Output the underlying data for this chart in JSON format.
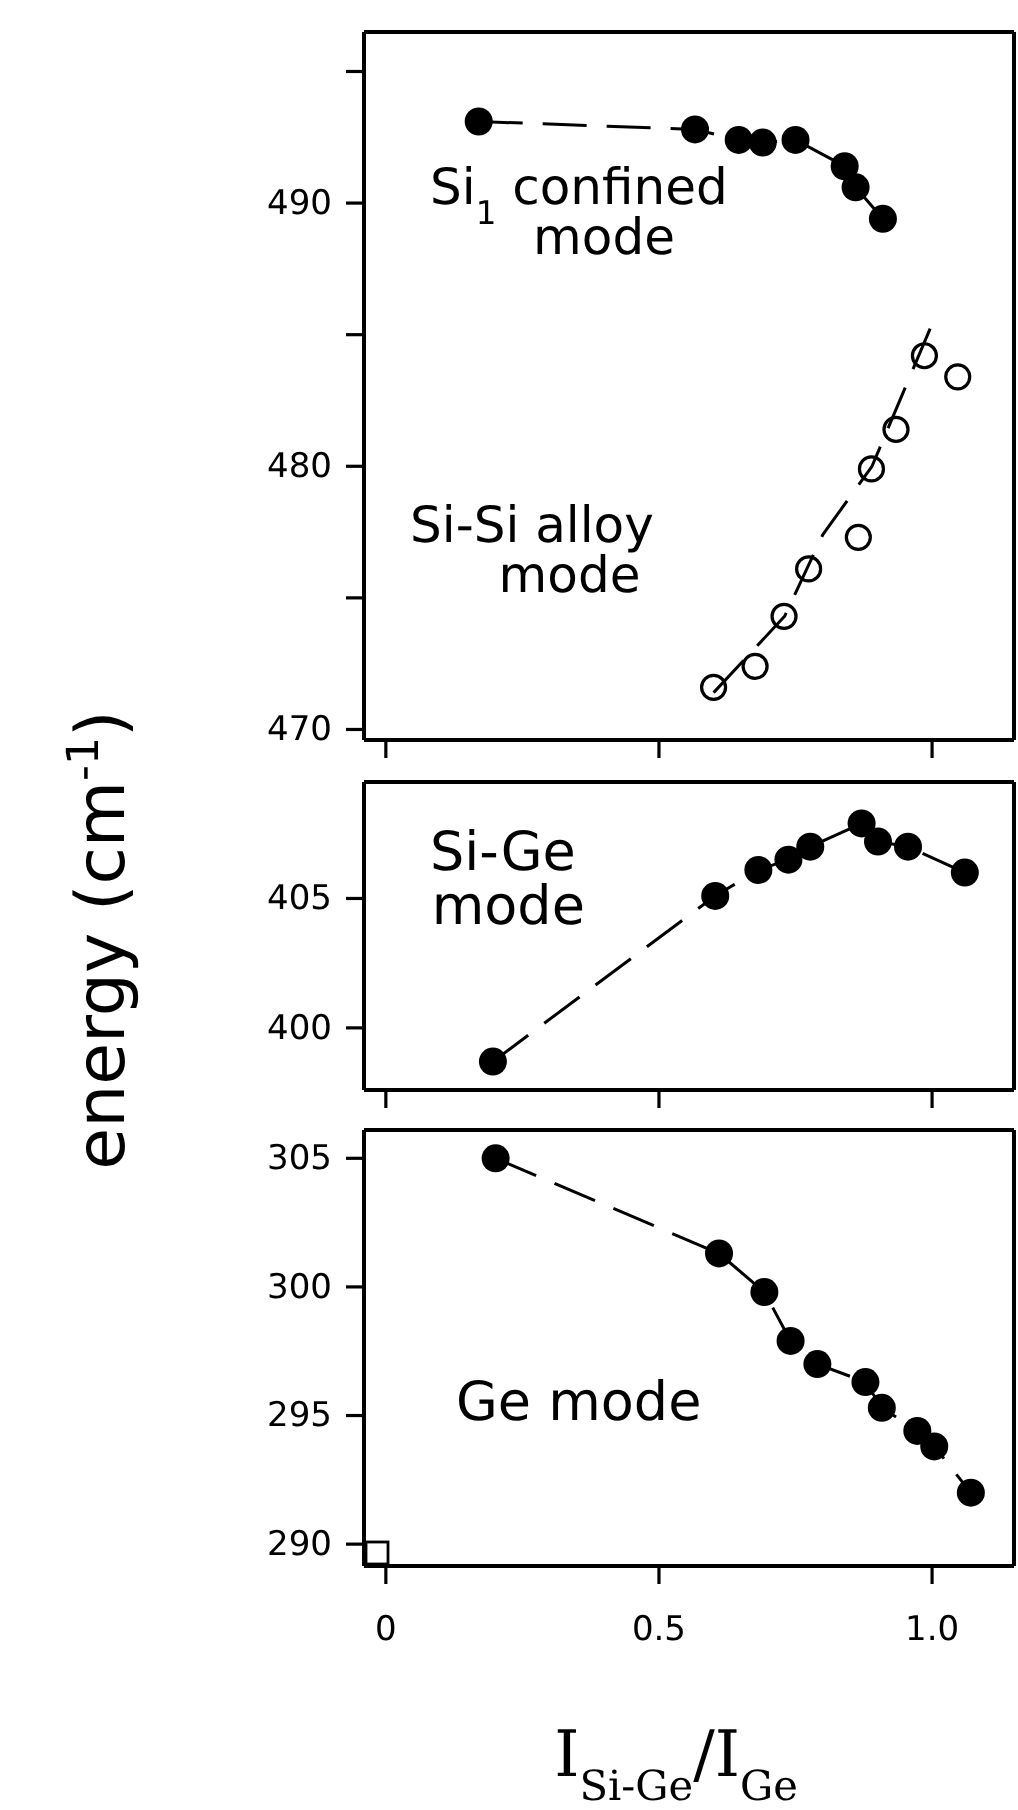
{
  "chart_data": [
    {
      "type": "line",
      "xlim": [
        -0.04,
        1.15
      ],
      "xticks": [
        {
          "value": 0,
          "label": null
        },
        {
          "value": 0.5,
          "label": null
        },
        {
          "value": 1,
          "label": null
        }
      ],
      "ylim": [
        469.6,
        496.5
      ],
      "yticks": [
        {
          "value": 470,
          "label": "470"
        },
        {
          "value": 475,
          "label": null
        },
        {
          "value": 480,
          "label": "480"
        },
        {
          "value": 485,
          "label": null
        },
        {
          "value": 490,
          "label": "490"
        },
        {
          "value": 495,
          "label": null
        }
      ],
      "tick_labels": "y",
      "marker": "circle",
      "annotations": [
        "Si$_{1}$ confined mode",
        "Si-Si alloy mode"
      ],
      "series": [
        {
          "type": "line",
          "line_style": "dashed",
          "color": "#000000",
          "x": [
            0.17,
            0.566,
            0.646,
            0.69,
            0.75,
            0.84,
            0.86,
            0.91
          ],
          "values": [
            493.1,
            492.8,
            492.4,
            492.3,
            492.4,
            491.4,
            490.6,
            489.4
          ]
        },
        {
          "type": "scatter",
          "color": "#000000",
          "x": [
            0.6,
            0.676,
            0.729,
            0.774,
            0.865,
            0.889,
            0.934,
            0.986,
            1.047
          ],
          "values": [
            471.6,
            472.4,
            474.3,
            476.1,
            477.3,
            479.9,
            481.4,
            484.2,
            483.4
          ]
        },
        {
          "type": "line",
          "marker": "none",
          "line_style": "dashed",
          "color": "#000000",
          "x": [
            0.6,
            0.73,
            0.8,
            0.89,
            1.0
          ],
          "values": [
            471.4,
            474.3,
            477.4,
            480,
            485.4
          ]
        }
      ]
    },
    {
      "type": "line",
      "xlim": [
        -0.04,
        1.15
      ],
      "xticks": [
        {
          "value": 0,
          "label": null
        },
        {
          "value": 0.5,
          "label": null
        },
        {
          "value": 1,
          "label": null
        }
      ],
      "ylim": [
        397.6,
        409.5
      ],
      "yticks": [
        400,
        405
      ],
      "tick_labels": "y",
      "marker": "circle",
      "ylabel": "energy (cm$^{-1}$)",
      "annotations": [
        "Si-Ge mode"
      ],
      "series": [
        {
          "type": "line",
          "line_style": "dashed",
          "color": "#000000",
          "x": [
            0.196,
            0.603,
            0.682,
            0.737,
            0.777,
            0.871,
            0.901,
            0.956,
            1.06
          ],
          "values": [
            398.7,
            405.1,
            406.1,
            406.5,
            407.0,
            407.9,
            407.2,
            407.0,
            406.0
          ]
        }
      ]
    },
    {
      "type": "line",
      "xlim": [
        -0.04,
        1.15
      ],
      "xticks": [
        0,
        {
          "value": 0.5,
          "label": "0.5"
        },
        {
          "value": 1,
          "label": "1.0"
        }
      ],
      "ylim": [
        289.15,
        306.1
      ],
      "yticks": [
        290,
        295,
        300,
        305
      ],
      "marker": "circle",
      "xlabel": "I$_{Si-Ge}$/I$_{Ge}$",
      "annotations": [
        "Ge mode"
      ],
      "series": [
        {
          "type": "line",
          "line_style": "dashed",
          "color": "#000000",
          "x": [
            0.201,
            0.61,
            0.693,
            0.741,
            0.79,
            0.878,
            0.908,
            0.973,
            1.004,
            1.071
          ],
          "values": [
            305.0,
            301.3,
            299.8,
            297.9,
            297.0,
            296.3,
            295.3,
            294.4,
            293.8,
            292.0
          ]
        }
      ]
    }
  ]
}
